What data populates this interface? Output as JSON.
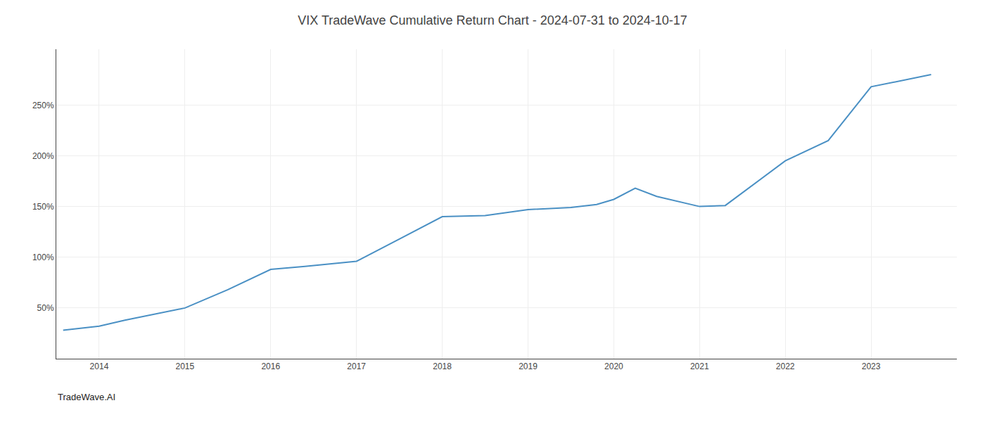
{
  "chart_data": {
    "type": "line",
    "title": "VIX TradeWave Cumulative Return Chart - 2024-07-31 to 2024-10-17",
    "annotations": [
      "TradeWave.AI"
    ],
    "x": [
      2013.58,
      2014.0,
      2014.3,
      2015.0,
      2015.5,
      2016.0,
      2016.4,
      2017.0,
      2017.5,
      2018.0,
      2018.5,
      2019.0,
      2019.5,
      2019.8,
      2020.0,
      2020.25,
      2020.5,
      2021.0,
      2021.3,
      2022.0,
      2022.5,
      2023.0,
      2023.7
    ],
    "values": [
      28,
      32,
      38,
      50,
      68,
      88,
      91,
      96,
      118,
      140,
      141,
      147,
      149,
      152,
      157,
      168,
      160,
      150,
      151,
      195,
      215,
      268,
      280
    ],
    "color": "#4a90c4",
    "xlim": [
      2013.5,
      2024.0
    ],
    "xticks": [
      2014,
      2015,
      2016,
      2017,
      2018,
      2019,
      2020,
      2021,
      2022,
      2023
    ],
    "ylim": [
      0,
      305
    ],
    "yticks": [
      {
        "value": 50,
        "label": "50%"
      },
      {
        "value": 100,
        "label": "100%"
      },
      {
        "value": 150,
        "label": "150%"
      },
      {
        "value": 200,
        "label": "200%"
      },
      {
        "value": 250,
        "label": "250%"
      }
    ],
    "grid": true
  }
}
